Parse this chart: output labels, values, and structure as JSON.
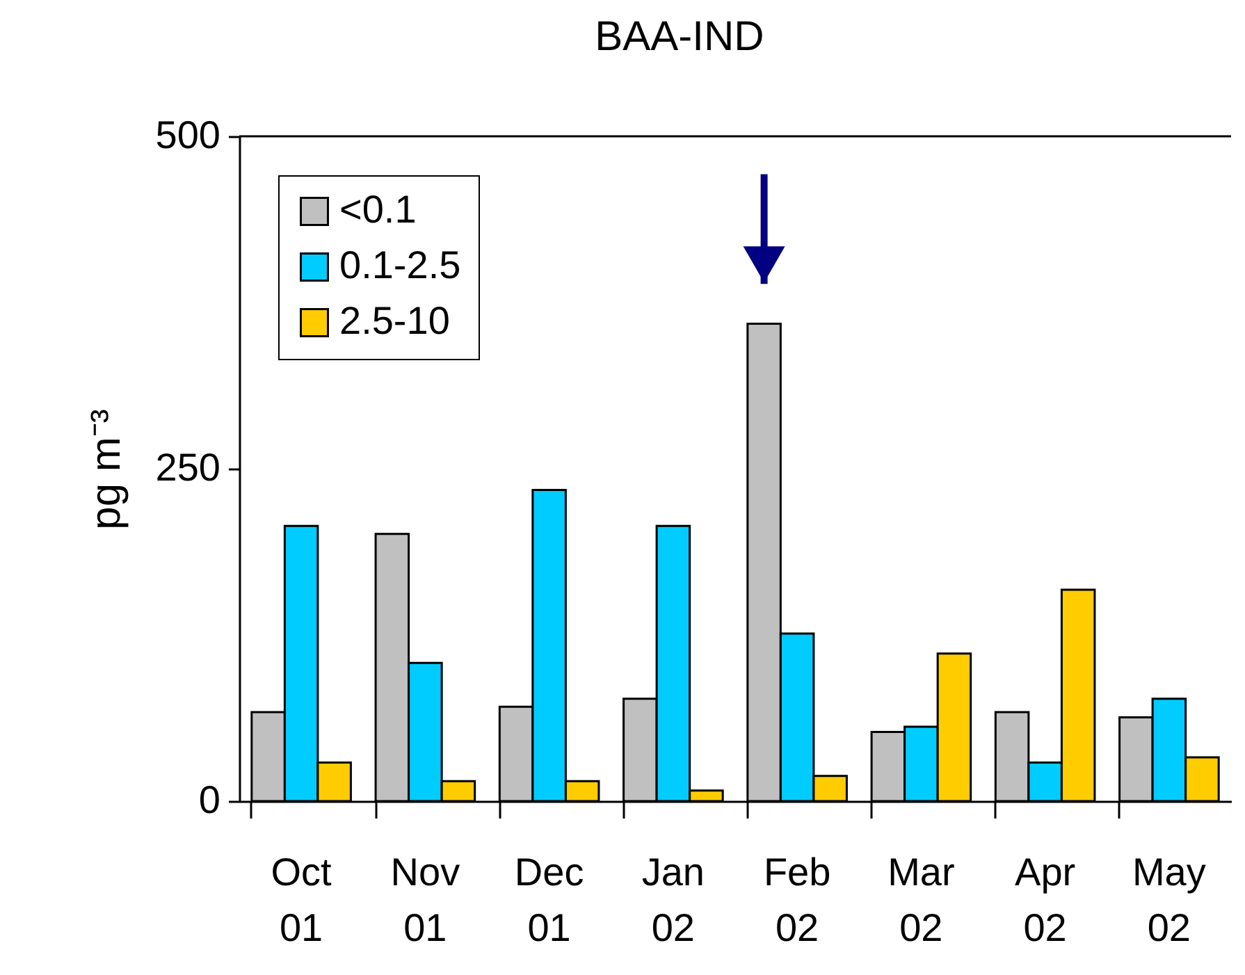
{
  "chart_data": {
    "type": "bar",
    "title": "BAA-IND",
    "ylabel": "pg m⁻³",
    "categories": [
      "Oct 01",
      "Nov 01",
      "Dec 01",
      "Jan 02",
      "Feb 02",
      "Mar 02",
      "Apr 02",
      "May 02"
    ],
    "series": [
      {
        "name": "<0.1",
        "color": "#c0c0c0",
        "values": [
          67,
          201,
          71,
          77,
          359,
          52,
          67,
          63
        ]
      },
      {
        "name": "0.1-2.5",
        "color": "#00ccff",
        "values": [
          207,
          104,
          234,
          207,
          126,
          56,
          29,
          77
        ]
      },
      {
        "name": "2.5-10",
        "color": "#ffcc00",
        "values": [
          29,
          15,
          15,
          8,
          19,
          111,
          159,
          33
        ]
      }
    ],
    "ylim": [
      0,
      500
    ],
    "yticks": [
      0,
      250,
      500
    ],
    "grid": false,
    "legend": "top left"
  }
}
